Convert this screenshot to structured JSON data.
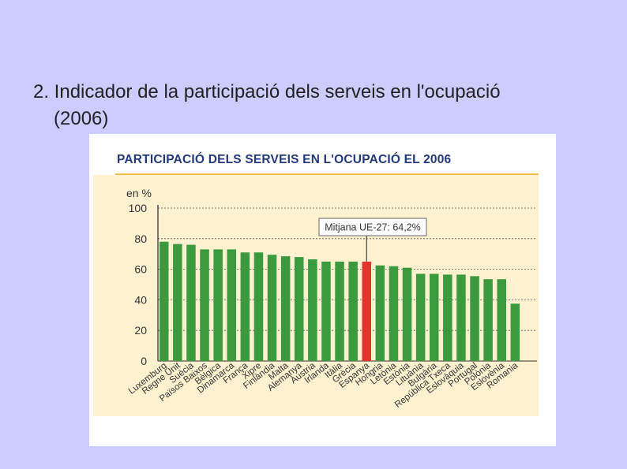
{
  "slide": {
    "title_line1": "2. Indicador de la participació dels serveis en l'ocupació",
    "title_line2": "(2006)"
  },
  "colors": {
    "background": "#ccccff",
    "panel": "#fdf1cf",
    "bar": "#3b9a3e",
    "bar_highlight": "#e2342b",
    "title": "#24397a"
  },
  "chart_data": {
    "type": "bar",
    "title": "PARTICIPACIÓ DELS SERVEIS EN L'OCUPACIÓ EL 2006",
    "unit_label": "en %",
    "ylim": [
      0,
      100
    ],
    "yticks": [
      0,
      20,
      40,
      60,
      80,
      100
    ],
    "grid": "dashed horizontal",
    "annotation": {
      "text": "Mitjana UE-27: 64,2%",
      "value": 64.2,
      "category": "Espanya"
    },
    "highlight": "Espanya",
    "categories": [
      "Luxemburg",
      "Regne Unit",
      "Suècia",
      "Països Baixos",
      "Bèlgica",
      "Dinamarca",
      "França",
      "Xipre",
      "Finlàndia",
      "Malta",
      "Alemanya",
      "Àustria",
      "Irlanda",
      "Itàlia",
      "Grècia",
      "Espanya",
      "Hongria",
      "Letònia",
      "Estònia",
      "Lituània",
      "Bulgària",
      "República Txeca",
      "Eslovàquia",
      "Portugal",
      "Polònia",
      "Eslovènia",
      "Romania"
    ],
    "values": [
      78,
      76.5,
      76,
      73,
      73,
      73,
      71,
      71,
      69.5,
      68.5,
      68,
      66.5,
      65,
      65,
      65,
      65,
      62.5,
      62,
      61,
      57,
      57,
      56.5,
      56.5,
      55.5,
      53.5,
      53.5,
      37.5
    ]
  }
}
